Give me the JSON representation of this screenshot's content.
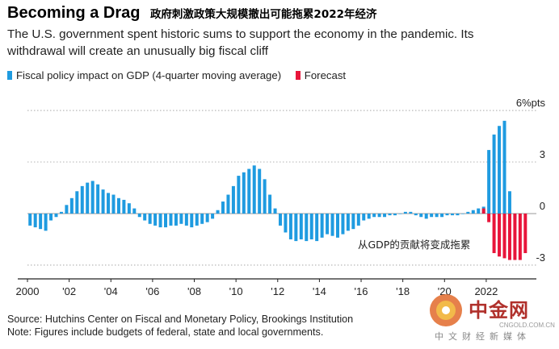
{
  "title": "Becoming a Drag",
  "title_cn": "政府刺激政策大规模撤出可能拖累2022年经济",
  "subtitle": "The U.S. government spent historic sums to support the economy in the pandemic. Its withdrawal will create an unusually big fiscal cliff",
  "footer": {
    "source": "Source: Hutchins Center on Fiscal and Monetary Policy, Brookings Institution",
    "note": "Note: Figures include budgets of federal, state and local governments."
  },
  "watermark": {
    "name": "中金网",
    "domain": "CNGOLD.COM.CN",
    "slogan": "中文财经新媒体"
  },
  "colors": {
    "actual": "#1f9be0",
    "forecast": "#e8153a"
  },
  "chart_data": {
    "type": "bar",
    "legend": [
      {
        "label": "Fiscal policy impact on GDP (4-quarter moving average)",
        "color": "#1f9be0"
      },
      {
        "label": "Forecast",
        "color": "#e8153a"
      }
    ],
    "annotation": "从GDP的贡献将变成拖累",
    "x_ticks": [
      "2000",
      "'02",
      "'04",
      "'06",
      "'08",
      "'10",
      "'12",
      "'14",
      "'16",
      "'18",
      "'20",
      "2022"
    ],
    "y_ticks": [
      {
        "value": 6,
        "label": "6%pts"
      },
      {
        "value": 3,
        "label": "3"
      },
      {
        "value": 0,
        "label": "0"
      },
      {
        "value": -3,
        "label": "-3"
      }
    ],
    "ylim": [
      -3.8,
      6.8
    ],
    "xlim": [
      2000.0,
      2024.25
    ],
    "grid": true,
    "series": [
      {
        "name": "Fiscal policy impact on GDP (4-quarter moving average)",
        "start_year": 2000.0,
        "step_years": 0.25,
        "values": [
          -0.7,
          -0.8,
          -0.9,
          -1.0,
          -0.4,
          -0.2,
          0.1,
          0.5,
          0.9,
          1.3,
          1.6,
          1.8,
          1.9,
          1.7,
          1.4,
          1.2,
          1.1,
          0.9,
          0.8,
          0.6,
          0.3,
          -0.2,
          -0.4,
          -0.6,
          -0.7,
          -0.8,
          -0.8,
          -0.7,
          -0.7,
          -0.6,
          -0.7,
          -0.8,
          -0.7,
          -0.6,
          -0.5,
          -0.3,
          0.2,
          0.7,
          1.1,
          1.6,
          2.2,
          2.4,
          2.6,
          2.8,
          2.6,
          2.0,
          1.1,
          0.3,
          -0.7,
          -1.1,
          -1.5,
          -1.6,
          -1.5,
          -1.6,
          -1.5,
          -1.6,
          -1.4,
          -1.2,
          -1.3,
          -1.4,
          -1.2,
          -1.0,
          -0.9,
          -0.7,
          -0.4,
          -0.3,
          -0.2,
          -0.2,
          -0.2,
          -0.1,
          -0.1,
          0.0,
          0.1,
          0.1,
          -0.1,
          -0.2,
          -0.3,
          -0.2,
          -0.2,
          -0.2,
          -0.1,
          -0.1,
          -0.1,
          0.0,
          0.1,
          0.2,
          0.3,
          0.4,
          3.7,
          4.6,
          5.1,
          5.4,
          1.3,
          -0.3
        ]
      },
      {
        "name": "Forecast",
        "start_year": 2021.75,
        "step_years": 0.25,
        "values": [
          0.3,
          -0.5,
          -2.3,
          -2.5,
          -2.6,
          -2.7,
          -2.7,
          -2.7,
          -2.3
        ]
      }
    ]
  }
}
